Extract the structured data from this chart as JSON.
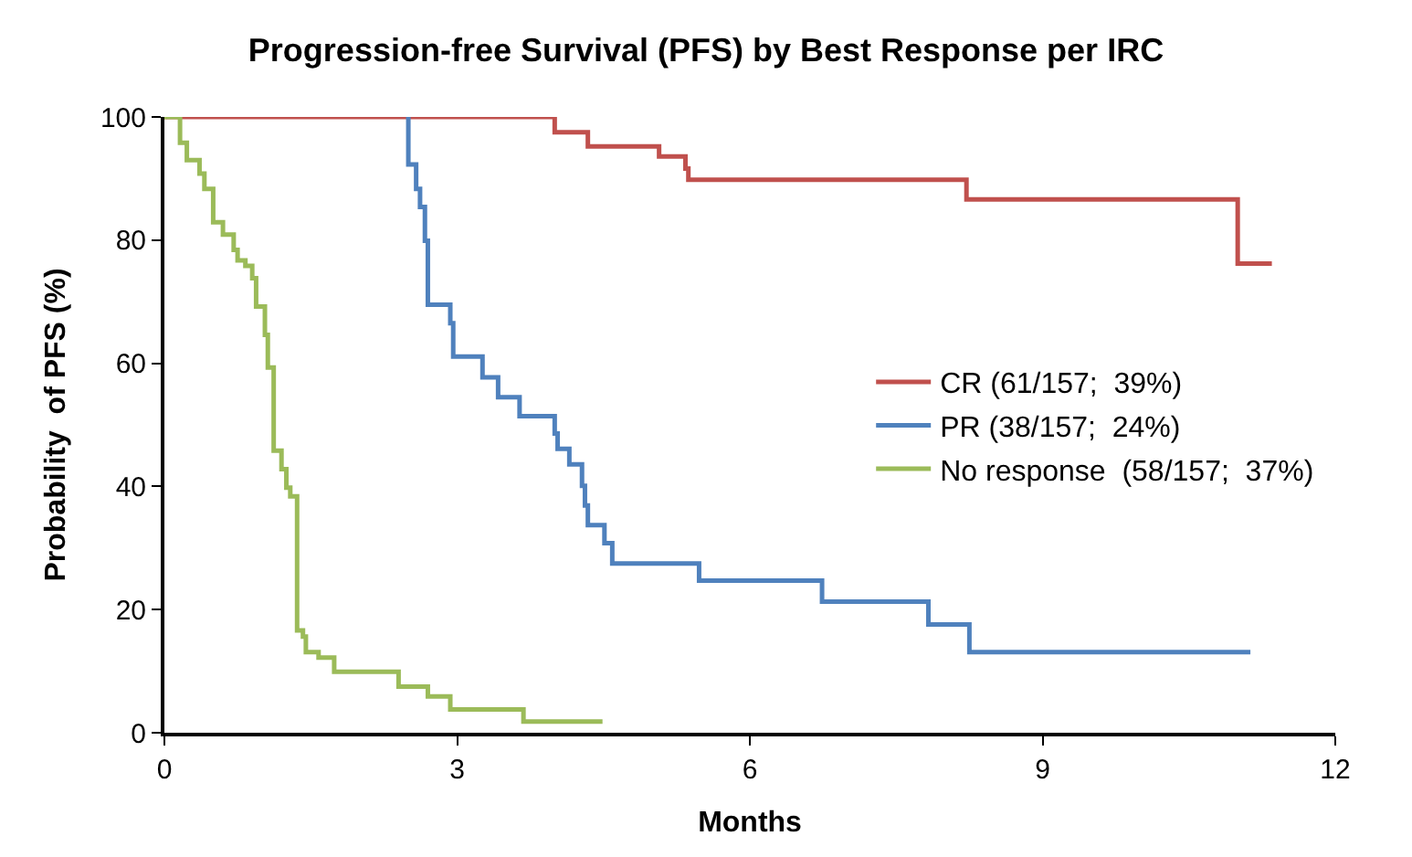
{
  "chart_data": {
    "type": "step",
    "title": "Progression-free Survival (PFS) by Best Response per IRC",
    "xlabel": "Months",
    "ylabel": "Probability  of PFS (%)",
    "xlim": [
      0,
      12
    ],
    "xticks": [
      0,
      3,
      6,
      9,
      12
    ],
    "ylim": [
      0,
      100
    ],
    "yticks": [
      0,
      20,
      40,
      60,
      80,
      100
    ],
    "legend": "right",
    "line_style": "solid",
    "marker": "none",
    "series": [
      {
        "name": "CR (61/157;  39%)",
        "color": "#c0504d",
        "x": [
          0,
          4.0,
          4.34,
          5.07,
          5.34,
          5.37,
          8.22,
          11.0,
          11.35
        ],
        "values": [
          100,
          97.5,
          95.2,
          93.6,
          91.6,
          89.8,
          86.6,
          76.2,
          76.2
        ]
      },
      {
        "name": "PR (38/157;  24%)",
        "color": "#4f81bd",
        "x": [
          2.5,
          2.5,
          2.58,
          2.62,
          2.67,
          2.7,
          2.93,
          2.96,
          3.26,
          3.42,
          3.64,
          4.0,
          4.03,
          4.15,
          4.28,
          4.31,
          4.34,
          4.51,
          4.59,
          5.48,
          6.74,
          7.83,
          8.25,
          11.13
        ],
        "values": [
          100,
          92.3,
          88.3,
          85.4,
          79.9,
          69.5,
          66.5,
          61.1,
          57.7,
          54.5,
          51.4,
          48.6,
          46.1,
          43.6,
          40.1,
          36.9,
          33.7,
          30.8,
          27.5,
          24.7,
          21.3,
          17.6,
          13.1,
          13.1
        ]
      },
      {
        "name": "No response  (58/157;  37%)",
        "color": "#9bbb59",
        "x": [
          0,
          0.08,
          0.16,
          0.23,
          0.36,
          0.41,
          0.5,
          0.6,
          0.71,
          0.75,
          0.83,
          0.9,
          0.94,
          1.03,
          1.06,
          1.12,
          1.2,
          1.25,
          1.29,
          1.36,
          1.42,
          1.45,
          1.58,
          1.74,
          2.4,
          2.7,
          2.93,
          3.68,
          4.49
        ],
        "values": [
          100,
          100,
          95.8,
          93,
          90.8,
          88.3,
          82.9,
          80.9,
          78.4,
          76.7,
          75.8,
          73.8,
          69.2,
          64.6,
          59.3,
          45.8,
          42.8,
          39.8,
          38.4,
          16.6,
          15.6,
          13.1,
          12.2,
          9.9,
          7.5,
          5.9,
          3.8,
          1.8,
          1.8
        ]
      }
    ]
  }
}
